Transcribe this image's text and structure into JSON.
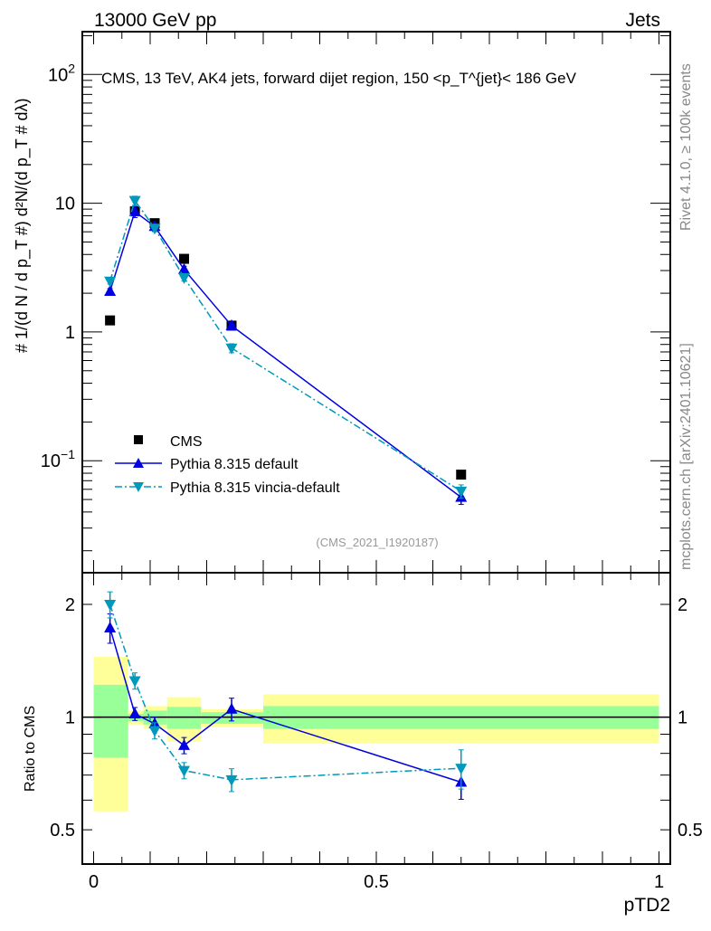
{
  "header": {
    "left": "13000 GeV pp",
    "right": "Jets"
  },
  "side_text": {
    "top": "Rivet 4.1.0, ≥ 100k events",
    "bottom": "mcplots.cern.ch [arXiv:2401.10621]"
  },
  "colors": {
    "cms": "#000000",
    "default": "#0000e0",
    "vincia": "#0099bb",
    "band_inner": "#99ff99",
    "band_outer": "#ffff99"
  },
  "chart_data": [
    {
      "type": "line",
      "title": "CMS, 13 TeV, AK4 jets, forward dijet region, 150 <p_T^{jet}< 186 GeV",
      "title_parts": {
        "main": "CMS, 13 TeV, AK4 jets, forward dijet region, 150 <p",
        "sup": "{jet}",
        "sub": "T",
        "end": "}< 186 GeV"
      },
      "ylabel": "# 1/(d N / d p_T #) d²N/(d p_T # dλ)",
      "ylabel_parts": {
        "hash": "#",
        "one": "1",
        "den": "d N / d p",
        "T": "T",
        "num2": "d²N",
        "den2": "d p",
        "dl": "dλ"
      },
      "yscale": "log",
      "xlim": [
        -0.02,
        1.02
      ],
      "ylim": [
        0.0135,
        215
      ],
      "yticks": [
        {
          "v": 0.1,
          "base": "10",
          "exp": "−1"
        },
        {
          "v": 1,
          "label": "1"
        },
        {
          "v": 10,
          "label": "10"
        },
        {
          "v": 100,
          "base": "10",
          "exp": "2"
        }
      ],
      "x": [
        0.029,
        0.073,
        0.108,
        0.16,
        0.244,
        0.65
      ],
      "series": [
        {
          "name": "CMS",
          "key": "cms",
          "marker": "square",
          "values": [
            1.23,
            8.65,
            7.0,
            3.7,
            1.12,
            0.078
          ]
        },
        {
          "name": "Pythia 8.315 default",
          "key": "default",
          "marker": "triangle-up",
          "line": "solid",
          "values": [
            2.07,
            8.6,
            6.6,
            3.06,
            1.12,
            0.052
          ],
          "err": [
            0.05,
            0.1,
            0.08,
            0.06,
            0.05,
            0.12
          ]
        },
        {
          "name": "Pythia 8.315 vincia-default",
          "key": "vincia",
          "marker": "triangle-down",
          "line": "dashdot",
          "values": [
            2.48,
            10.5,
            6.4,
            2.64,
            0.75,
            0.058
          ],
          "err": [
            0.05,
            0.08,
            0.06,
            0.06,
            0.08,
            0.12
          ]
        }
      ],
      "legend": "middle-left",
      "annotation": "(CMS_2021_I1920187)"
    },
    {
      "type": "line",
      "ylabel": "Ratio to CMS",
      "xlabel": "pTD2",
      "yscale": "log",
      "xlim": [
        -0.02,
        1.02
      ],
      "ylim": [
        0.405,
        2.43
      ],
      "yticks": [
        {
          "v": 0.5,
          "label": "0.5"
        },
        {
          "v": 1,
          "label": "1"
        },
        {
          "v": 2,
          "label": "2"
        }
      ],
      "xticks": [
        {
          "v": 0,
          "label": "0"
        },
        {
          "v": 0.5,
          "label": "0.5"
        },
        {
          "v": 1,
          "label": "1"
        }
      ],
      "bands": [
        {
          "x0": 0.0,
          "x1": 0.061,
          "outer": [
            0.56,
            1.45
          ],
          "inner": [
            0.78,
            1.22
          ]
        },
        {
          "x0": 0.061,
          "x1": 0.088,
          "outer": [
            0.955,
            1.04
          ],
          "inner": [
            0.975,
            1.02
          ]
        },
        {
          "x0": 0.088,
          "x1": 0.13,
          "outer": [
            0.93,
            1.07
          ],
          "inner": [
            0.955,
            1.04
          ]
        },
        {
          "x0": 0.13,
          "x1": 0.19,
          "outer": [
            0.86,
            1.13
          ],
          "inner": [
            0.93,
            1.065
          ]
        },
        {
          "x0": 0.19,
          "x1": 0.3,
          "outer": [
            0.94,
            1.05
          ],
          "inner": [
            0.96,
            1.03
          ]
        },
        {
          "x0": 0.3,
          "x1": 1.0,
          "outer": [
            0.85,
            1.15
          ],
          "inner": [
            0.93,
            1.07
          ]
        }
      ],
      "x": [
        0.029,
        0.073,
        0.108,
        0.16,
        0.244,
        0.65
      ],
      "series": [
        {
          "name": "Pythia 8.315 default",
          "key": "default",
          "marker": "triangle-up",
          "values": [
            1.73,
            1.02,
            0.96,
            0.84,
            1.05,
            0.67
          ],
          "err": [
            0.09,
            0.04,
            0.04,
            0.05,
            0.07,
            0.1
          ]
        },
        {
          "name": "Pythia 8.315 vincia-default",
          "key": "vincia",
          "marker": "triangle-down",
          "values": [
            2.0,
            1.25,
            0.92,
            0.72,
            0.68,
            0.73
          ],
          "err": [
            0.08,
            0.05,
            0.05,
            0.05,
            0.07,
            0.12
          ]
        }
      ]
    }
  ]
}
